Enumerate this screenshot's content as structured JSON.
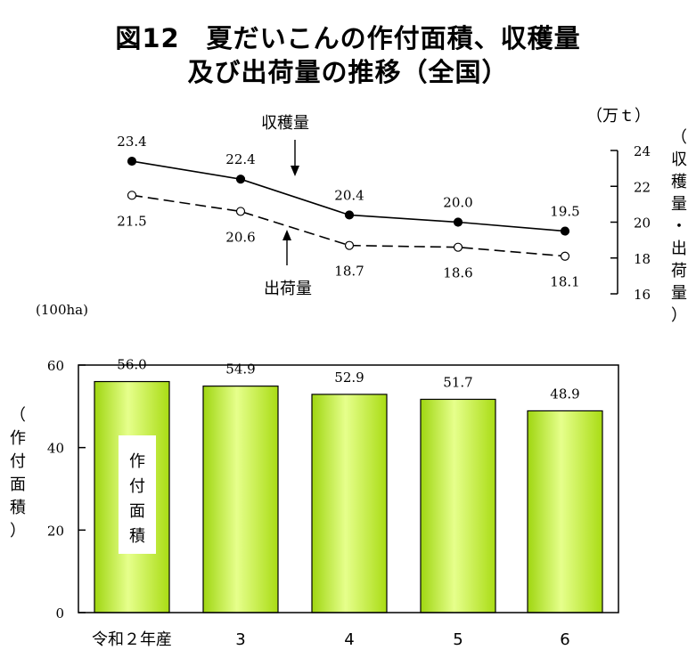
{
  "title": {
    "line1": "図12　夏だいこんの作付面積、収穫量",
    "line2": "及び出荷量の推移（全国）"
  },
  "colors": {
    "bar_fill": "#b8ec1c",
    "bar_highlight": "#e8ff9a",
    "line": "#000000",
    "background": "#ffffff"
  },
  "chart_data": [
    {
      "type": "line",
      "title": "収穫量・出荷量",
      "unit_label": "（万ｔ）",
      "ylabel": "（収穫量・出荷量）",
      "ylim": [
        16,
        24
      ],
      "yticks": [
        "16",
        "18",
        "20",
        "22",
        "24"
      ],
      "categories": [
        "令和２年産",
        "3",
        "4",
        "5",
        "6"
      ],
      "series": [
        {
          "name": "収穫量",
          "style": "solid-filled",
          "values": [
            23.4,
            22.4,
            20.4,
            20.0,
            19.5
          ],
          "labels": [
            "23.4",
            "22.4",
            "20.4",
            "20.0",
            "19.5"
          ]
        },
        {
          "name": "出荷量",
          "style": "dashed-open",
          "values": [
            21.5,
            20.6,
            18.7,
            18.6,
            18.1
          ],
          "labels": [
            "21.5",
            "20.6",
            "18.7",
            "18.6",
            "18.1"
          ]
        }
      ]
    },
    {
      "type": "bar",
      "title": "作付面積",
      "unit_label": "(100ha)",
      "ylabel": "（作付面積）",
      "ylim": [
        0,
        60
      ],
      "yticks": [
        "0",
        "20",
        "40",
        "60"
      ],
      "categories": [
        "令和２年産",
        "3",
        "4",
        "5",
        "6"
      ],
      "values": [
        56.0,
        54.9,
        52.9,
        51.7,
        48.9
      ],
      "labels": [
        "56.0",
        "54.9",
        "52.9",
        "51.7",
        "48.9"
      ],
      "inner_label": "作付面積"
    }
  ]
}
